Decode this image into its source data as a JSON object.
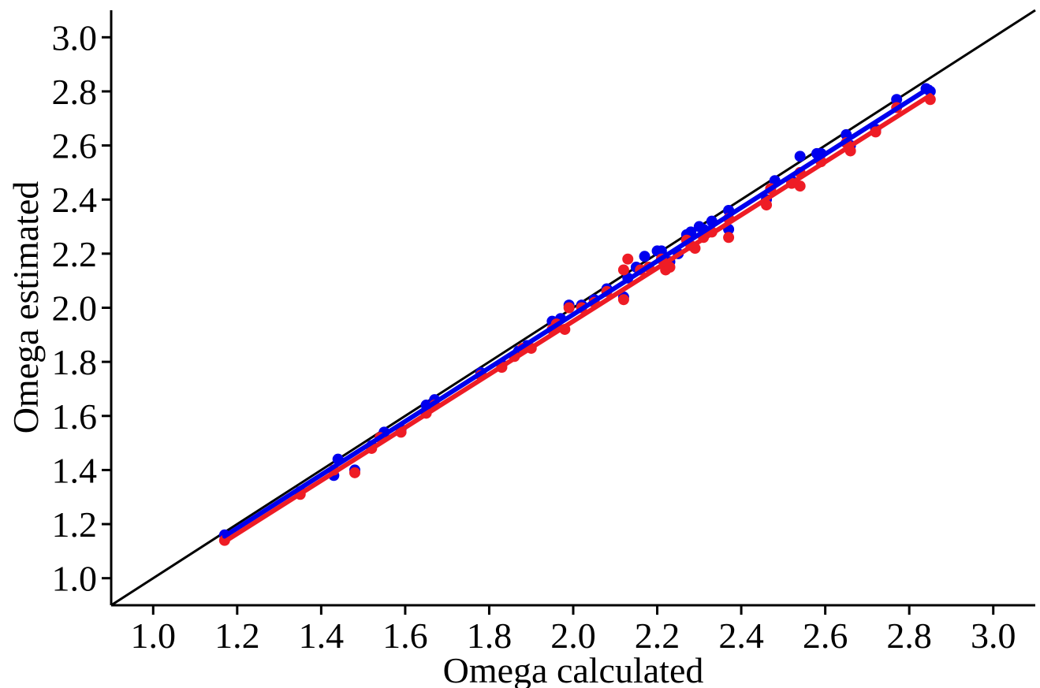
{
  "chart_data": {
    "type": "scatter",
    "title": "",
    "xlabel": "Omega calculated",
    "ylabel": "Omega estimated",
    "xlim": [
      0.9,
      3.1
    ],
    "ylim": [
      0.9,
      3.1
    ],
    "xticks": [
      "1.0",
      "1.2",
      "1.4",
      "1.6",
      "1.8",
      "2.0",
      "2.2",
      "2.4",
      "2.6",
      "2.8",
      "3.0"
    ],
    "yticks": [
      "1.0",
      "1.2",
      "1.4",
      "1.6",
      "1.8",
      "2.0",
      "2.2",
      "2.4",
      "2.6",
      "2.8",
      "3.0"
    ],
    "grid": false,
    "legend": "none",
    "identity_line": {
      "from": [
        0.9,
        0.9
      ],
      "to": [
        3.1,
        3.1
      ],
      "color": "#000000"
    },
    "series": [
      {
        "color": "#0000ee",
        "points": [
          [
            1.17,
            1.16
          ],
          [
            1.35,
            1.32
          ],
          [
            1.43,
            1.38
          ],
          [
            1.44,
            1.44
          ],
          [
            1.48,
            1.4
          ],
          [
            1.52,
            1.49
          ],
          [
            1.55,
            1.54
          ],
          [
            1.59,
            1.55
          ],
          [
            1.65,
            1.64
          ],
          [
            1.67,
            1.66
          ],
          [
            1.78,
            1.76
          ],
          [
            1.83,
            1.79
          ],
          [
            1.87,
            1.84
          ],
          [
            1.89,
            1.86
          ],
          [
            1.95,
            1.95
          ],
          [
            1.97,
            1.96
          ],
          [
            1.99,
            2.01
          ],
          [
            2.02,
            2.01
          ],
          [
            2.05,
            2.03
          ],
          [
            2.08,
            2.07
          ],
          [
            2.12,
            2.04
          ],
          [
            2.13,
            2.11
          ],
          [
            2.15,
            2.15
          ],
          [
            2.17,
            2.19
          ],
          [
            2.2,
            2.21
          ],
          [
            2.21,
            2.21
          ],
          [
            2.23,
            2.17
          ],
          [
            2.25,
            2.2
          ],
          [
            2.27,
            2.27
          ],
          [
            2.28,
            2.28
          ],
          [
            2.3,
            2.3
          ],
          [
            2.31,
            2.29
          ],
          [
            2.33,
            2.32
          ],
          [
            2.37,
            2.36
          ],
          [
            2.37,
            2.29
          ],
          [
            2.46,
            2.4
          ],
          [
            2.48,
            2.47
          ],
          [
            2.52,
            2.47
          ],
          [
            2.54,
            2.56
          ],
          [
            2.58,
            2.57
          ],
          [
            2.59,
            2.57
          ],
          [
            2.65,
            2.64
          ],
          [
            2.66,
            2.6
          ],
          [
            2.72,
            2.66
          ],
          [
            2.77,
            2.77
          ],
          [
            2.84,
            2.81
          ],
          [
            2.85,
            2.8
          ]
        ],
        "fit": {
          "from": [
            1.17,
            1.155
          ],
          "to": [
            2.85,
            2.815
          ]
        }
      },
      {
        "color": "#ee1c25",
        "points": [
          [
            1.17,
            1.14
          ],
          [
            1.35,
            1.31
          ],
          [
            1.43,
            1.4
          ],
          [
            1.48,
            1.39
          ],
          [
            1.52,
            1.48
          ],
          [
            1.54,
            1.52
          ],
          [
            1.59,
            1.54
          ],
          [
            1.65,
            1.61
          ],
          [
            1.67,
            1.64
          ],
          [
            1.78,
            1.75
          ],
          [
            1.83,
            1.78
          ],
          [
            1.86,
            1.82
          ],
          [
            1.88,
            1.85
          ],
          [
            1.9,
            1.85
          ],
          [
            1.95,
            1.92
          ],
          [
            1.96,
            1.94
          ],
          [
            1.98,
            1.92
          ],
          [
            1.99,
            2.0
          ],
          [
            2.02,
            2.0
          ],
          [
            2.05,
            2.02
          ],
          [
            2.08,
            2.06
          ],
          [
            2.12,
            2.03
          ],
          [
            2.12,
            2.14
          ],
          [
            2.13,
            2.18
          ],
          [
            2.16,
            2.14
          ],
          [
            2.18,
            2.15
          ],
          [
            2.21,
            2.18
          ],
          [
            2.22,
            2.14
          ],
          [
            2.23,
            2.15
          ],
          [
            2.27,
            2.25
          ],
          [
            2.28,
            2.23
          ],
          [
            2.29,
            2.22
          ],
          [
            2.31,
            2.26
          ],
          [
            2.33,
            2.28
          ],
          [
            2.37,
            2.26
          ],
          [
            2.37,
            2.33
          ],
          [
            2.46,
            2.38
          ],
          [
            2.47,
            2.44
          ],
          [
            2.52,
            2.46
          ],
          [
            2.54,
            2.45
          ],
          [
            2.54,
            2.5
          ],
          [
            2.59,
            2.54
          ],
          [
            2.65,
            2.61
          ],
          [
            2.66,
            2.58
          ],
          [
            2.72,
            2.65
          ],
          [
            2.77,
            2.74
          ],
          [
            2.85,
            2.77
          ]
        ],
        "fit": {
          "from": [
            1.17,
            1.135
          ],
          "to": [
            2.85,
            2.785
          ]
        }
      }
    ]
  }
}
